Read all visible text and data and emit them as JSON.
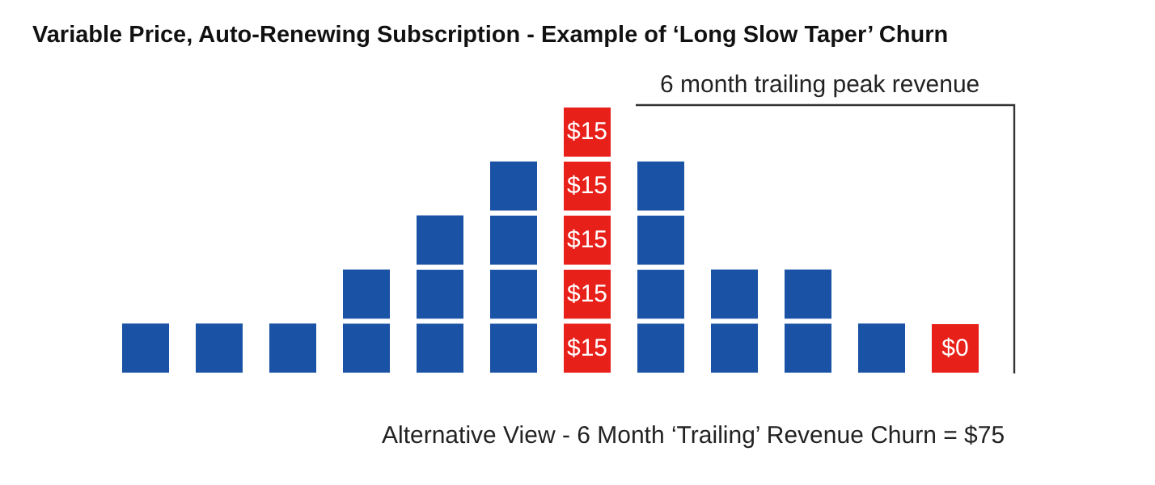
{
  "chart_data": {
    "type": "bar",
    "title": "Variable Price, Auto-Renewing Subscription -  Example of ‘Long Slow Taper’ Churn",
    "xlabel": "Alternative View - 6 Month ‘Trailing’ Revenue Churn = $75",
    "annotations": [
      "6 month trailing peak revenue"
    ],
    "stacked": true,
    "legend": false,
    "grid": false,
    "tick_labels": false,
    "categories": [
      null,
      null,
      null,
      null,
      null,
      null,
      null,
      null,
      null,
      null,
      null,
      null
    ],
    "series": [
      {
        "colors": [
          "#1a52a5",
          "#1a52a5",
          "#1a52a5",
          "#1a52a5",
          "#1a52a5",
          "#1a52a5",
          "#e8201a",
          "#1a52a5",
          "#1a52a5",
          "#1a52a5",
          "#1a52a5",
          "#e8201a"
        ],
        "values": [
          15,
          15,
          15,
          15,
          15,
          15,
          15,
          15,
          15,
          15,
          15,
          0
        ],
        "value_labels": [
          null,
          null,
          null,
          null,
          null,
          null,
          "$15",
          null,
          null,
          null,
          null,
          "$0"
        ]
      },
      {
        "colors": [
          "#1a52a5",
          "#1a52a5",
          "#1a52a5",
          "#1a52a5",
          "#1a52a5",
          "#1a52a5",
          "#e8201a",
          "#1a52a5",
          "#1a52a5",
          "#1a52a5",
          "#1a52a5",
          "#1a52a5"
        ],
        "values": [
          null,
          null,
          null,
          15,
          15,
          15,
          15,
          15,
          15,
          15,
          null,
          null
        ],
        "value_labels": [
          null,
          null,
          null,
          null,
          null,
          null,
          "$15",
          null,
          null,
          null,
          null,
          null
        ]
      },
      {
        "colors": [
          "#1a52a5",
          "#1a52a5",
          "#1a52a5",
          "#1a52a5",
          "#1a52a5",
          "#1a52a5",
          "#e8201a",
          "#1a52a5",
          "#1a52a5",
          "#1a52a5",
          "#1a52a5",
          "#1a52a5"
        ],
        "values": [
          null,
          null,
          null,
          null,
          15,
          15,
          15,
          15,
          null,
          null,
          null,
          null
        ],
        "value_labels": [
          null,
          null,
          null,
          null,
          null,
          null,
          "$15",
          null,
          null,
          null,
          null,
          null
        ]
      },
      {
        "colors": [
          "#1a52a5",
          "#1a52a5",
          "#1a52a5",
          "#1a52a5",
          "#1a52a5",
          "#1a52a5",
          "#e8201a",
          "#1a52a5",
          "#1a52a5",
          "#1a52a5",
          "#1a52a5",
          "#1a52a5"
        ],
        "values": [
          null,
          null,
          null,
          null,
          null,
          15,
          15,
          15,
          null,
          null,
          null,
          null
        ],
        "value_labels": [
          null,
          null,
          null,
          null,
          null,
          null,
          "$15",
          null,
          null,
          null,
          null,
          null
        ]
      },
      {
        "colors": [
          "#1a52a5",
          "#1a52a5",
          "#1a52a5",
          "#1a52a5",
          "#1a52a5",
          "#1a52a5",
          "#e8201a",
          "#1a52a5",
          "#1a52a5",
          "#1a52a5",
          "#1a52a5",
          "#1a52a5"
        ],
        "values": [
          null,
          null,
          null,
          null,
          null,
          null,
          15,
          null,
          null,
          null,
          null,
          null
        ],
        "value_labels": [
          null,
          null,
          null,
          null,
          null,
          null,
          "$15",
          null,
          null,
          null,
          null,
          null
        ]
      }
    ]
  }
}
